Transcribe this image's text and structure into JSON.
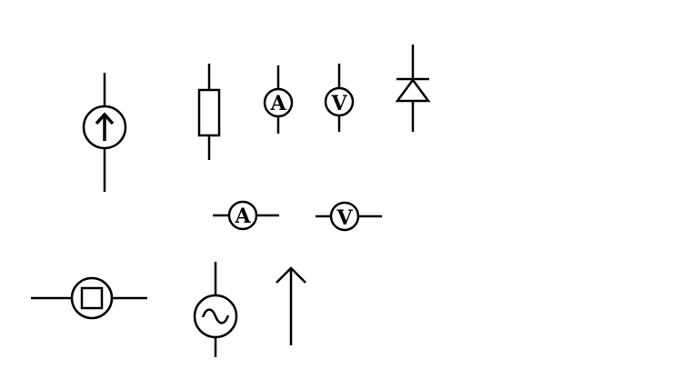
{
  "diagram": {
    "symbols": [
      {
        "id": "current-source",
        "kind": "current-source"
      },
      {
        "id": "resistor",
        "kind": "resistor"
      },
      {
        "id": "ammeter-vertical",
        "kind": "ammeter",
        "label": "A"
      },
      {
        "id": "voltmeter-vertical",
        "kind": "voltmeter",
        "label": "V"
      },
      {
        "id": "diode",
        "kind": "diode"
      },
      {
        "id": "ammeter-horizontal",
        "kind": "ammeter",
        "label": "A"
      },
      {
        "id": "voltmeter-horizontal",
        "kind": "voltmeter",
        "label": "V"
      },
      {
        "id": "lamp-source",
        "kind": "lamp"
      },
      {
        "id": "ac-source",
        "kind": "ac-source"
      },
      {
        "id": "arrow",
        "kind": "arrow"
      }
    ]
  }
}
